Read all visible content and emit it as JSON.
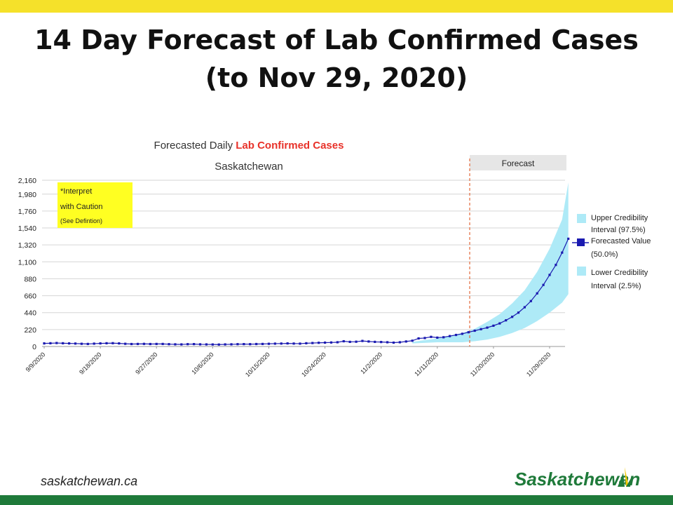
{
  "slide": {
    "title_line1": "14 Day Forecast of Lab Confirmed Cases",
    "title_line2": "(to Nov 29, 2020)"
  },
  "footer": {
    "website": "saskatchewan.ca",
    "brand": "Saskatchewan"
  },
  "colors": {
    "top_bar": "#f5e12a",
    "bottom_bar": "#1f7a3a",
    "band": "#aeeaf7",
    "series": "#1a1ab0",
    "title_accent": "#e8322a",
    "caution_box": "#ffff22",
    "forecast_label_bg": "#e6e6e6",
    "divider": "#e2693a"
  },
  "chart_data": {
    "type": "line",
    "title_plain": "Forecasted Daily ",
    "title_accent": "Lab Confirmed Cases",
    "subtitle": "Saskatchewan",
    "forecast_label": "Forecast",
    "note": {
      "line1": "*Interpret",
      "line2": "with Caution",
      "line3": "(See Defintion)"
    },
    "ylim": [
      0,
      2160
    ],
    "yticks": [
      "2,160",
      "1,980",
      "1,760",
      "1,540",
      "1,320",
      "1,100",
      "880",
      "660",
      "440",
      "220",
      "0"
    ],
    "ytick_values": [
      2160,
      1980,
      1760,
      1540,
      1320,
      1100,
      880,
      660,
      440,
      220,
      0
    ],
    "xticks": [
      "9/9/2020",
      "9/18/2020",
      "9/27/2020",
      "10/6/2020",
      "10/15/2020",
      "10/24/2020",
      "11/2/2020",
      "11/11/2020",
      "11/20/2020",
      "11/29/2020"
    ],
    "xtick_days": [
      0,
      9,
      18,
      27,
      36,
      45,
      54,
      63,
      72,
      81
    ],
    "x_range_days": [
      0,
      81
    ],
    "forecast_start_day": 67,
    "legend": [
      {
        "label_line1": "Upper Credibility",
        "label_line2": "Interval (97.5%)"
      },
      {
        "label_line1": "Forecasted Value",
        "label_line2": "(50.0%)"
      },
      {
        "label_line1": "Lower Credibility",
        "label_line2": "Interval (2.5%)"
      }
    ],
    "series": [
      {
        "name": "Forecasted Value (50.0%)",
        "values": [
          40,
          42,
          45,
          42,
          40,
          38,
          35,
          33,
          37,
          40,
          42,
          43,
          40,
          35,
          32,
          33,
          34,
          32,
          33,
          33,
          30,
          28,
          27,
          30,
          31,
          28,
          27,
          26,
          25,
          27,
          28,
          30,
          31,
          30,
          32,
          33,
          35,
          37,
          38,
          40,
          38,
          37,
          42,
          45,
          48,
          50,
          52,
          55,
          68,
          60,
          62,
          72,
          65,
          60,
          58,
          55,
          50,
          55,
          65,
          75,
          105,
          110,
          125,
          115,
          120,
          135,
          150,
          165,
          185,
          205,
          225,
          245,
          270,
          300,
          340,
          385,
          440,
          510,
          590,
          690,
          800,
          930,
          1060,
          1220,
          1400
        ]
      }
    ],
    "upper": [
      {
        "day": 59,
        "value": 60
      },
      {
        "day": 63,
        "value": 105
      },
      {
        "day": 67,
        "value": 175
      },
      {
        "day": 69,
        "value": 230
      },
      {
        "day": 71,
        "value": 320
      },
      {
        "day": 73,
        "value": 420
      },
      {
        "day": 75,
        "value": 560
      },
      {
        "day": 77,
        "value": 730
      },
      {
        "day": 79,
        "value": 970
      },
      {
        "day": 81,
        "value": 1270
      },
      {
        "day": 83,
        "value": 1650
      },
      {
        "day": 84,
        "value": 2130
      }
    ],
    "lower": [
      {
        "day": 59,
        "value": 40
      },
      {
        "day": 63,
        "value": 55
      },
      {
        "day": 67,
        "value": 55
      },
      {
        "day": 69,
        "value": 68
      },
      {
        "day": 71,
        "value": 90
      },
      {
        "day": 73,
        "value": 125
      },
      {
        "day": 75,
        "value": 175
      },
      {
        "day": 77,
        "value": 240
      },
      {
        "day": 79,
        "value": 330
      },
      {
        "day": 81,
        "value": 440
      },
      {
        "day": 83,
        "value": 570
      },
      {
        "day": 84,
        "value": 680
      }
    ]
  }
}
